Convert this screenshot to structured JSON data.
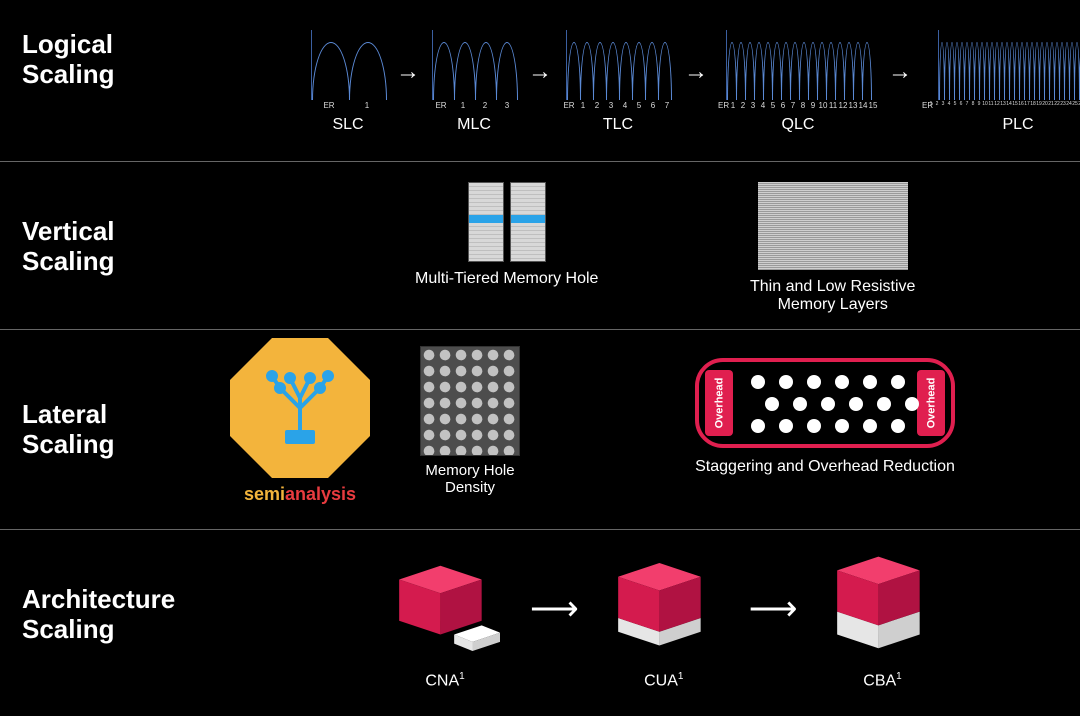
{
  "colors": {
    "background": "#000000",
    "text": "#ffffff",
    "divider": "#666666",
    "curve_stroke": "#5b8ad6",
    "logo_bg": "#f3b43c",
    "logo_chip": "#2aa3e8",
    "logo_text1": "#f3b43c",
    "logo_text2": "#e83b3f",
    "pill_stroke": "#e01f4f",
    "cube_top": "#f23e6d",
    "cube_front": "#d41b4e",
    "cube_side": "#b01242",
    "base_top": "#ffffff",
    "base_front": "#e6e6e6",
    "base_side": "#cfcfcf",
    "mth_band": "#2aa3e8"
  },
  "rows": {
    "logical": {
      "title": "Logical\nScaling",
      "er_label": "ER",
      "types": [
        {
          "name": "SLC",
          "bits": 1,
          "states": 2,
          "labels": [
            "1"
          ],
          "curve_w": 38
        },
        {
          "name": "MLC",
          "bits": 2,
          "states": 4,
          "labels": [
            "1",
            "2",
            "3"
          ],
          "curve_w": 22
        },
        {
          "name": "TLC",
          "bits": 3,
          "states": 8,
          "labels": [
            "1",
            "2",
            "3",
            "4",
            "5",
            "6",
            "7"
          ],
          "curve_w": 14
        },
        {
          "name": "QLC",
          "bits": 4,
          "states": 16,
          "labels": [
            "1",
            "2",
            "3",
            "4",
            "5",
            "6",
            "7",
            "8",
            "9",
            "10",
            "11",
            "12",
            "13",
            "14",
            "15"
          ],
          "curve_w": 10
        },
        {
          "name": "PLC",
          "bits": 5,
          "states": 32,
          "labels_count": 31,
          "curve_w": 6
        }
      ]
    },
    "vertical": {
      "title": "Vertical\nScaling",
      "item1_caption": "Multi-Tiered Memory Hole",
      "item2_caption": "Thin and Low Resistive\nMemory Layers"
    },
    "lateral": {
      "title": "Lateral\nScaling",
      "logo": {
        "part1": "semi",
        "part2": "analysis"
      },
      "item1_caption": "Memory Hole\nDensity",
      "item2_caption": "Staggering and Overhead Reduction",
      "overhead_label": "Overhead",
      "dots": [
        [
          12,
          14
        ],
        [
          40,
          14
        ],
        [
          68,
          14
        ],
        [
          96,
          14
        ],
        [
          124,
          14
        ],
        [
          152,
          14
        ],
        [
          26,
          36
        ],
        [
          54,
          36
        ],
        [
          82,
          36
        ],
        [
          110,
          36
        ],
        [
          138,
          36
        ],
        [
          166,
          36
        ],
        [
          12,
          58
        ],
        [
          40,
          58
        ],
        [
          68,
          58
        ],
        [
          96,
          58
        ],
        [
          124,
          58
        ],
        [
          152,
          58
        ]
      ]
    },
    "architecture": {
      "title": "Architecture\nScaling",
      "steps": [
        {
          "name": "CNA",
          "sup": "1",
          "variant": "cna"
        },
        {
          "name": "CUA",
          "sup": "1",
          "variant": "cua"
        },
        {
          "name": "CBA",
          "sup": "1",
          "variant": "cba"
        }
      ]
    }
  }
}
